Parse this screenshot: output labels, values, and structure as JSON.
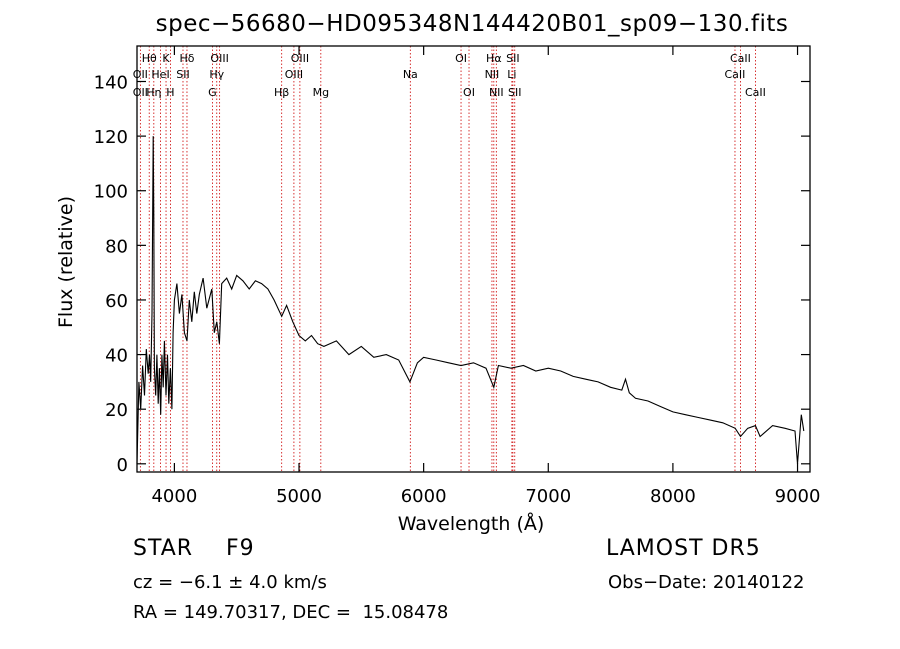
{
  "chart_data": {
    "type": "line",
    "title": "spec−56680−HD095348N144420B01_sp09−130.fits",
    "xlabel": "Wavelength (Å)",
    "ylabel": "Flux (relative)",
    "xlim": [
      3700,
      9100
    ],
    "ylim": [
      -3,
      153
    ],
    "xticks": [
      4000,
      5000,
      6000,
      7000,
      8000,
      9000
    ],
    "yticks": [
      0,
      20,
      40,
      60,
      80,
      100,
      120,
      140
    ],
    "grid": false,
    "legend": "none",
    "spectrum_color": "#000000",
    "line_marker_color": "#cc0000",
    "series": [
      {
        "x": [
          3700,
          3715,
          3730,
          3745,
          3760,
          3775,
          3790,
          3800,
          3810,
          3820,
          3830,
          3835,
          3840,
          3850,
          3860,
          3870,
          3880,
          3890,
          3900,
          3910,
          3920,
          3933,
          3945,
          3955,
          3968,
          3980,
          3990,
          4000,
          4020,
          4040,
          4060,
          4080,
          4101,
          4120,
          4140,
          4160,
          4180,
          4200,
          4230,
          4260,
          4300,
          4320,
          4340,
          4361,
          4380,
          4420,
          4460,
          4500,
          4550,
          4600,
          4650,
          4700,
          4750,
          4800,
          4861,
          4900,
          4950,
          5000,
          5050,
          5100,
          5150,
          5200,
          5300,
          5400,
          5500,
          5600,
          5700,
          5800,
          5890,
          5950,
          6000,
          6100,
          6200,
          6300,
          6400,
          6500,
          6563,
          6600,
          6700,
          6800,
          6900,
          7000,
          7100,
          7200,
          7300,
          7400,
          7500,
          7590,
          7620,
          7650,
          7700,
          7800,
          7900,
          8000,
          8100,
          8200,
          8300,
          8400,
          8500,
          8542,
          8600,
          8662,
          8700,
          8800,
          8900,
          8980,
          9000,
          9030,
          9050
        ],
        "y": [
          0,
          30,
          20,
          36,
          25,
          42,
          33,
          40,
          30,
          55,
          120,
          90,
          35,
          25,
          40,
          22,
          35,
          18,
          40,
          28,
          45,
          25,
          40,
          22,
          35,
          20,
          48,
          60,
          66,
          55,
          62,
          48,
          45,
          60,
          52,
          63,
          55,
          62,
          68,
          57,
          64,
          48,
          52,
          44,
          66,
          68,
          64,
          69,
          67,
          64,
          67,
          66,
          64,
          60,
          54,
          58,
          52,
          47,
          45,
          47,
          44,
          43,
          45,
          40,
          43,
          39,
          40,
          38,
          30,
          37,
          39,
          38,
          37,
          36,
          37,
          35,
          28,
          36,
          35,
          36,
          34,
          35,
          34,
          32,
          31,
          30,
          28,
          27,
          31,
          26,
          24,
          23,
          21,
          19,
          18,
          17,
          16,
          15,
          13,
          10,
          13,
          14,
          10,
          14,
          13,
          12,
          0,
          18,
          12
        ]
      }
    ],
    "line_labels": [
      {
        "name": "Hθ",
        "x": 3798,
        "row": 1
      },
      {
        "name": "OII",
        "x": 3727,
        "row": 2
      },
      {
        "name": "OII",
        "x": 3727,
        "row": 3
      },
      {
        "name": "Hη",
        "x": 3835,
        "row": 3
      },
      {
        "name": "K",
        "x": 3933,
        "row": 1
      },
      {
        "name": "HeI",
        "x": 3889,
        "row": 2
      },
      {
        "name": "H",
        "x": 3968,
        "row": 3
      },
      {
        "name": "Hδ",
        "x": 4101,
        "row": 1
      },
      {
        "name": "SII",
        "x": 4069,
        "row": 2
      },
      {
        "name": "OIII",
        "x": 4363,
        "row": 1
      },
      {
        "name": "Hγ",
        "x": 4340,
        "row": 2
      },
      {
        "name": "G",
        "x": 4305,
        "row": 3
      },
      {
        "name": "Hβ",
        "x": 4861,
        "row": 3
      },
      {
        "name": "OIII",
        "x": 5007,
        "row": 1
      },
      {
        "name": "OIII",
        "x": 4959,
        "row": 2
      },
      {
        "name": "Mg",
        "x": 5175,
        "row": 3
      },
      {
        "name": "Na",
        "x": 5893,
        "row": 2
      },
      {
        "name": "OI",
        "x": 6300,
        "row": 1
      },
      {
        "name": "OI",
        "x": 6364,
        "row": 3
      },
      {
        "name": "Hα",
        "x": 6563,
        "row": 1
      },
      {
        "name": "NII",
        "x": 6548,
        "row": 2
      },
      {
        "name": "NII",
        "x": 6583,
        "row": 3
      },
      {
        "name": "SII",
        "x": 6716,
        "row": 1
      },
      {
        "name": "Li",
        "x": 6708,
        "row": 2
      },
      {
        "name": "SII",
        "x": 6731,
        "row": 3
      },
      {
        "name": "CaII",
        "x": 8542,
        "row": 1
      },
      {
        "name": "CaII",
        "x": 8498,
        "row": 2
      },
      {
        "name": "CaII",
        "x": 8662,
        "row": 3
      }
    ],
    "marker_lines_x": [
      3727,
      3798,
      3835,
      3889,
      3933,
      3968,
      4069,
      4101,
      4305,
      4340,
      4363,
      4861,
      4959,
      5007,
      5175,
      5893,
      6300,
      6364,
      6548,
      6563,
      6583,
      6708,
      6716,
      6731,
      8498,
      8542,
      8662
    ]
  },
  "info": {
    "object_class": "STAR",
    "subclass": "F9",
    "survey": "LAMOST DR5",
    "cz": "cz = −6.1 ± 4.0 km/s",
    "obs_date": "Obs−Date: 20140122",
    "radec": "RA = 149.70317, DEC =  15.08478"
  }
}
